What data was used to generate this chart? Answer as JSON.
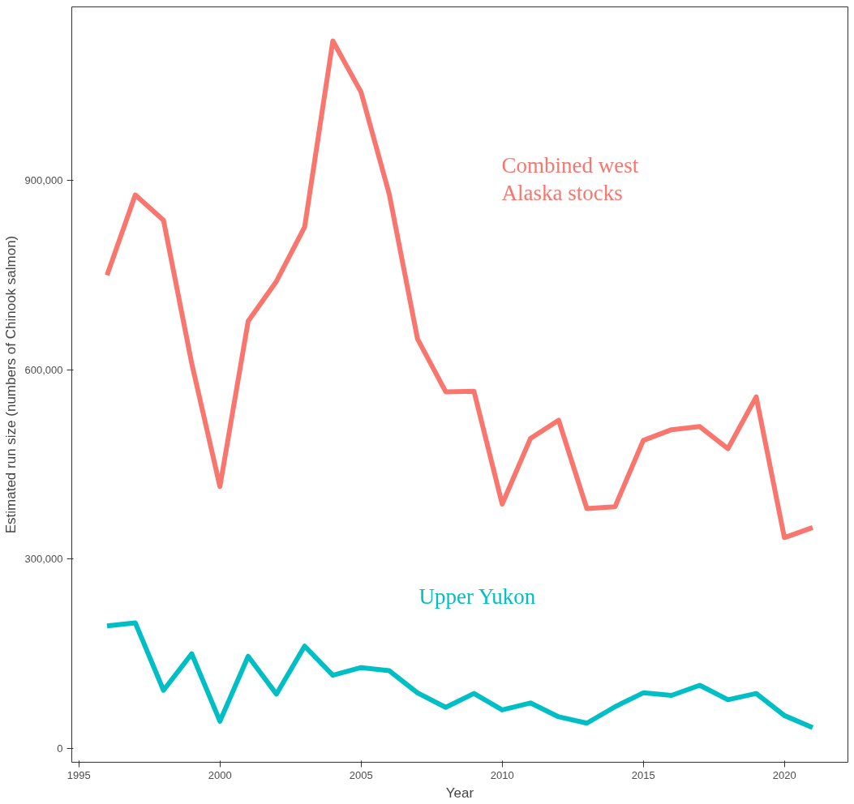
{
  "chart_data": {
    "type": "line",
    "xlabel": "Year",
    "ylabel": "Estimated run size (numbers of Chinook salmon)",
    "x": [
      1996,
      1997,
      1998,
      1999,
      2000,
      2001,
      2002,
      2003,
      2004,
      2005,
      2006,
      2007,
      2008,
      2009,
      2010,
      2011,
      2012,
      2013,
      2014,
      2015,
      2016,
      2017,
      2018,
      2019,
      2020,
      2021
    ],
    "series": [
      {
        "name": "Combined west\nAlaska stocks",
        "color": "#f8766d",
        "values": [
          750000,
          877000,
          837000,
          610000,
          415000,
          677000,
          740000,
          826000,
          1121000,
          1040000,
          878000,
          649000,
          565000,
          566000,
          387000,
          491000,
          520000,
          380000,
          383000,
          488000,
          505000,
          510000,
          475000,
          557000,
          334000,
          350000
        ]
      },
      {
        "name": "Upper Yukon",
        "color": "#00bfc4",
        "values": [
          194000,
          199000,
          92000,
          150000,
          43000,
          146000,
          86000,
          162000,
          116000,
          128000,
          123000,
          88000,
          65000,
          87000,
          61000,
          72000,
          50000,
          40000,
          66000,
          88000,
          84000,
          100000,
          77000,
          87000,
          52000,
          33000
        ]
      }
    ],
    "xlim": [
      1994.75,
      2022.25
    ],
    "ylim": [
      -22000,
      1175000
    ],
    "xticks": [
      1995,
      2000,
      2005,
      2010,
      2015,
      2020
    ],
    "yticks": [
      0,
      {
        "value": 300000,
        "label": "300,000"
      },
      {
        "value": 600000,
        "label": "600,000"
      },
      {
        "value": 900000,
        "label": "900,000"
      }
    ],
    "grid": false,
    "legend": false,
    "line_style": "solid",
    "marker": "none"
  }
}
